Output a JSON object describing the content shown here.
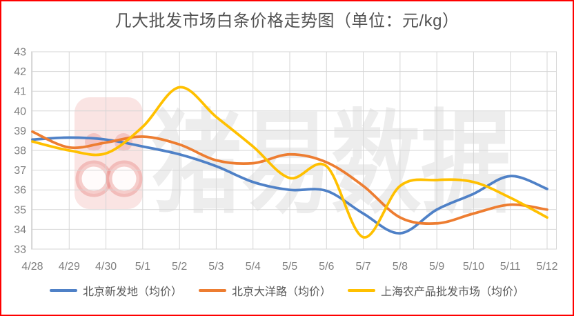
{
  "title": "几大批发市场白条价格走势图（单位：元/kg）",
  "watermark": {
    "text": "猪易数据",
    "logo": "pig-face-logo"
  },
  "colors": {
    "frame_border": "#FE0000",
    "title_text": "#525252",
    "axis_text": "#7F7F7F",
    "gridline": "#D6D6D6",
    "legend_text": "#595959",
    "watermark_text": "rgba(110,110,110,0.12)",
    "watermark_logo": "rgba(222,86,80,0.16)"
  },
  "chart_data": {
    "type": "line",
    "smooth": true,
    "grid": true,
    "legend_position": "bottom",
    "title": "几大批发市场白条价格走势图（单位：元/kg）",
    "xlabel": "",
    "ylabel": "",
    "ylim": [
      33,
      43
    ],
    "ytick_step": 1,
    "categories": [
      "4/28",
      "4/29",
      "4/30",
      "5/1",
      "5/2",
      "5/3",
      "5/4",
      "5/5",
      "5/6",
      "5/7",
      "5/8",
      "5/9",
      "5/10",
      "5/11",
      "5/12"
    ],
    "series": [
      {
        "name": "北京新发地（均价）",
        "color": "#4F81C7",
        "values": [
          38.55,
          38.65,
          38.55,
          38.2,
          37.8,
          37.2,
          36.4,
          36.0,
          35.95,
          34.8,
          33.8,
          35.0,
          35.8,
          36.7,
          36.05
        ]
      },
      {
        "name": "北京大洋路（均价）",
        "color": "#ED7D31",
        "values": [
          38.95,
          38.15,
          38.4,
          38.7,
          38.3,
          37.5,
          37.35,
          37.8,
          37.4,
          36.2,
          34.6,
          34.3,
          34.8,
          35.25,
          35.0
        ]
      },
      {
        "name": "上海农产品批发市场（均价）",
        "color": "#FFC000",
        "values": [
          38.45,
          38.0,
          37.85,
          39.2,
          41.2,
          39.7,
          38.2,
          36.6,
          37.2,
          33.6,
          36.2,
          36.5,
          36.4,
          35.6,
          34.6
        ]
      }
    ]
  }
}
